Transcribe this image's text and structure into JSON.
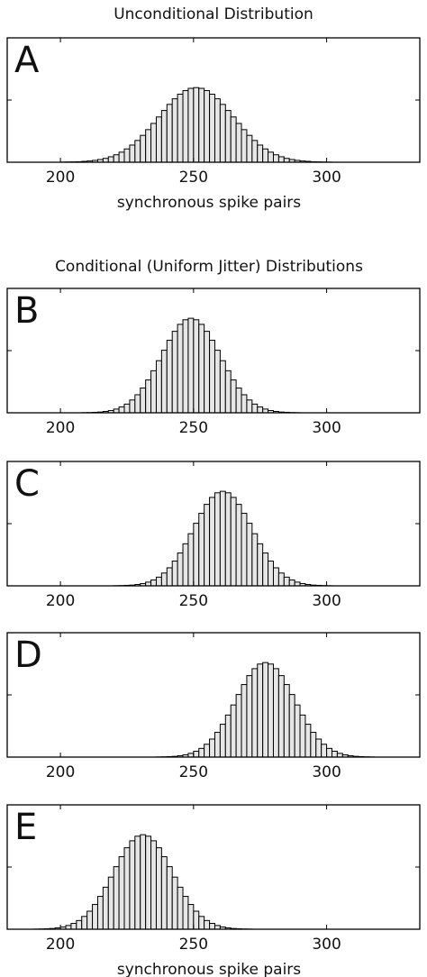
{
  "chart_data": [
    {
      "type": "histogram",
      "title": "Unconditional Distribution",
      "panel_label": "A",
      "x_label": "synchronous spike pairs",
      "bins": [
        200,
        202,
        204,
        206,
        208,
        210,
        212,
        214,
        216,
        218,
        220,
        222,
        224,
        226,
        228,
        230,
        232,
        234,
        236,
        238,
        240,
        242,
        244,
        246,
        248,
        250,
        252,
        254,
        256,
        258,
        260,
        262,
        264,
        266,
        268,
        270,
        272,
        274,
        276,
        278,
        280,
        282,
        284,
        286,
        288,
        290,
        292,
        294,
        296,
        298,
        300,
        302
      ],
      "counts": [
        0.01,
        0.02,
        0.03,
        0.04,
        0.07,
        0.1,
        0.15,
        0.22,
        0.31,
        0.44,
        0.6,
        0.81,
        1.07,
        1.38,
        1.75,
        2.16,
        2.62,
        3.12,
        3.64,
        4.16,
        4.65,
        5.1,
        5.47,
        5.76,
        5.94,
        6,
        5.94,
        5.76,
        5.47,
        5.1,
        4.65,
        4.16,
        3.64,
        3.12,
        2.62,
        2.16,
        1.75,
        1.38,
        1.07,
        0.81,
        0.6,
        0.44,
        0.31,
        0.22,
        0.15,
        0.1,
        0.07,
        0.04,
        0.03,
        0.02,
        0.01
      ],
      "color": "#e6e6e6",
      "xlim": [
        180,
        335
      ],
      "xticks": [
        200,
        250,
        300
      ],
      "ylim": [
        0,
        10
      ],
      "yticks": [
        5
      ]
    },
    {
      "type": "histogram",
      "title": "Conditional (Uniform Jitter) Distributions",
      "panel_label": "B",
      "bins": [
        208,
        210,
        212,
        214,
        216,
        218,
        220,
        222,
        224,
        226,
        228,
        230,
        232,
        234,
        236,
        238,
        240,
        242,
        244,
        246,
        248,
        250,
        252,
        254,
        256,
        258,
        260,
        262,
        264,
        266,
        268,
        270,
        272,
        274,
        276,
        278,
        280,
        282,
        284,
        286,
        288,
        290
      ],
      "counts": [
        0.01,
        0.02,
        0.04,
        0.06,
        0.11,
        0.18,
        0.3,
        0.47,
        0.7,
        1.03,
        1.45,
        1.99,
        2.64,
        3.38,
        4.19,
        5.03,
        5.83,
        6.55,
        7.11,
        7.48,
        7.6,
        7.48,
        7.11,
        6.55,
        5.83,
        5.03,
        4.19,
        3.38,
        2.64,
        1.99,
        1.45,
        1.03,
        0.7,
        0.47,
        0.3,
        0.18,
        0.11,
        0.06,
        0.04,
        0.02,
        0.01
      ],
      "color": "#e6e6e6",
      "xlim": [
        180,
        335
      ],
      "xticks": [
        200,
        250,
        300
      ],
      "ylim": [
        0,
        10
      ],
      "yticks": [
        5
      ]
    },
    {
      "type": "histogram",
      "panel_label": "C",
      "bins": [
        220,
        222,
        224,
        226,
        228,
        230,
        232,
        234,
        236,
        238,
        240,
        242,
        244,
        246,
        248,
        250,
        252,
        254,
        256,
        258,
        260,
        262,
        264,
        266,
        268,
        270,
        272,
        274,
        276,
        278,
        280,
        282,
        284,
        286,
        288,
        290,
        292,
        294,
        296,
        298,
        300,
        302
      ],
      "counts": [
        0.01,
        0.02,
        0.04,
        0.06,
        0.11,
        0.18,
        0.3,
        0.47,
        0.7,
        1.03,
        1.45,
        1.99,
        2.64,
        3.38,
        4.19,
        5.03,
        5.83,
        6.55,
        7.11,
        7.48,
        7.6,
        7.48,
        7.11,
        6.55,
        5.83,
        5.03,
        4.19,
        3.38,
        2.64,
        1.99,
        1.45,
        1.03,
        0.7,
        0.47,
        0.3,
        0.18,
        0.11,
        0.06,
        0.04,
        0.02,
        0.01
      ],
      "color": "#e6e6e6",
      "xlim": [
        180,
        335
      ],
      "xticks": [
        200,
        250,
        300
      ],
      "ylim": [
        0,
        10
      ],
      "yticks": [
        5
      ]
    },
    {
      "type": "histogram",
      "panel_label": "D",
      "bins": [
        236,
        238,
        240,
        242,
        244,
        246,
        248,
        250,
        252,
        254,
        256,
        258,
        260,
        262,
        264,
        266,
        268,
        270,
        272,
        274,
        276,
        278,
        280,
        282,
        284,
        286,
        288,
        290,
        292,
        294,
        296,
        298,
        300,
        302,
        304,
        306,
        308,
        310,
        312,
        314,
        316,
        318
      ],
      "counts": [
        0.01,
        0.02,
        0.04,
        0.06,
        0.11,
        0.18,
        0.3,
        0.47,
        0.7,
        1.03,
        1.45,
        1.99,
        2.64,
        3.38,
        4.19,
        5.03,
        5.83,
        6.55,
        7.11,
        7.48,
        7.6,
        7.48,
        7.11,
        6.55,
        5.83,
        5.03,
        4.19,
        3.38,
        2.64,
        1.99,
        1.45,
        1.03,
        0.7,
        0.47,
        0.3,
        0.18,
        0.11,
        0.06,
        0.04,
        0.02,
        0.01
      ],
      "color": "#e6e6e6",
      "xlim": [
        180,
        335
      ],
      "xticks": [
        200,
        250,
        300
      ],
      "ylim": [
        0,
        10
      ],
      "yticks": [
        5
      ]
    },
    {
      "type": "histogram",
      "panel_label": "E",
      "x_label": "synchronous spike pairs",
      "bins": [
        190,
        192,
        194,
        196,
        198,
        200,
        202,
        204,
        206,
        208,
        210,
        212,
        214,
        216,
        218,
        220,
        222,
        224,
        226,
        228,
        230,
        232,
        234,
        236,
        238,
        240,
        242,
        244,
        246,
        248,
        250,
        252,
        254,
        256,
        258,
        260,
        262,
        264,
        266,
        268,
        270,
        272
      ],
      "counts": [
        0.01,
        0.02,
        0.04,
        0.06,
        0.11,
        0.18,
        0.3,
        0.47,
        0.7,
        1.03,
        1.45,
        1.99,
        2.64,
        3.38,
        4.19,
        5.03,
        5.83,
        6.55,
        7.11,
        7.48,
        7.6,
        7.48,
        7.11,
        6.55,
        5.83,
        5.03,
        4.19,
        3.38,
        2.64,
        1.99,
        1.45,
        1.03,
        0.7,
        0.47,
        0.3,
        0.18,
        0.11,
        0.06,
        0.04,
        0.02,
        0.01
      ],
      "color": "#e6e6e6",
      "xlim": [
        180,
        335
      ],
      "xticks": [
        200,
        250,
        300
      ],
      "ylim": [
        0,
        10
      ],
      "yticks": [
        5
      ]
    }
  ]
}
